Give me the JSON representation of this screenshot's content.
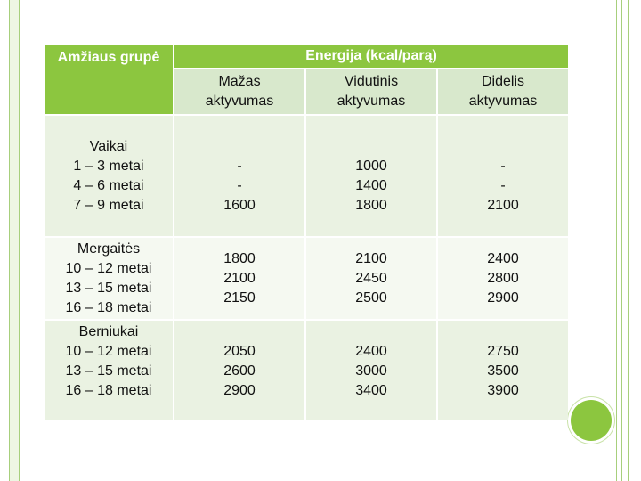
{
  "table": {
    "header_age": "Amžiaus grupė",
    "header_energy": "Energija (kcal/parą)",
    "subheaders": [
      "Mažas\naktyvumas",
      "Vidutinis\naktyvumas",
      "Didelis\naktyvumas"
    ],
    "rows": [
      {
        "group": "Vaikai\n1 – 3 metai\n4 – 6 metai\n7 – 9 metai",
        "low": "\n-\n-\n1600",
        "medium": "\n1000\n1400\n1800",
        "high": "\n-\n-\n2100"
      },
      {
        "group": "Mergaitės\n10 – 12 metai\n13 – 15 metai\n16 – 18 metai",
        "low": "1800\n2100\n2150",
        "medium": "2100\n2450\n2500",
        "high": "2400\n2800\n2900"
      },
      {
        "group": "Berniukai\n10 – 12 metai\n13 – 15 metai\n16 – 18 metai",
        "low": "2050\n2600\n2900",
        "medium": "2400\n3000\n3400",
        "high": "2750\n3500\n3900"
      }
    ]
  }
}
